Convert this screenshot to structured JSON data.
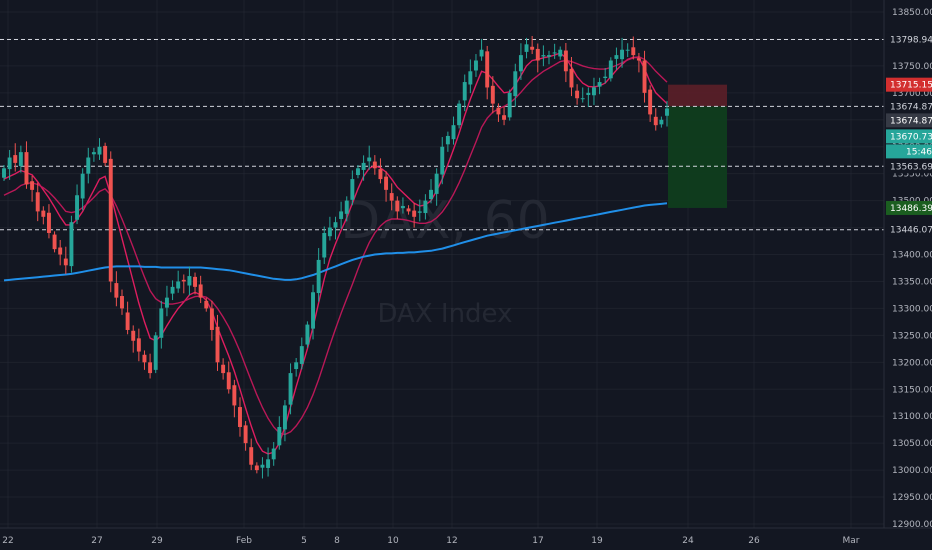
{
  "watermark": {
    "symbol": "DAX, 60",
    "name": "DAX Index"
  },
  "colors": {
    "background": "#131722",
    "grid": "#2a2e39",
    "up": "#26a69a",
    "down": "#ef5350",
    "ma_fast": "#e91e63",
    "ma_slow": "#c2185b",
    "ma_long": "#2196f3",
    "stop_zone": "#5c1f28",
    "target_zone": "#0f3d1e",
    "target_tag": "#1b5e20",
    "stop_tag": "#d32f2f",
    "price_tag": "#26a69a"
  },
  "chart_data": {
    "type": "candlestick",
    "interval": "60",
    "ylim": [
      12900,
      13850
    ],
    "y_ticks": [
      12900,
      12950,
      13000,
      13050,
      13100,
      13150,
      13200,
      13250,
      13300,
      13350,
      13400,
      13450,
      13500,
      13550,
      13600,
      13650,
      13700,
      13750,
      13800,
      13850
    ],
    "y_tick_labels": [
      "12900.000",
      "12950.000",
      "13000.000",
      "13050.000",
      "13100.000",
      "13150.000",
      "13200.000",
      "13250.000",
      "13300.000",
      "13350.000",
      "13400.000",
      "13450.000",
      "13500.000",
      "13550.000",
      "13600.000",
      "13650.000",
      "13700.000",
      "13750.000",
      "13800.000",
      "13850.000"
    ],
    "x_ticks": [
      "22",
      "27",
      "29",
      "Feb",
      "5",
      "8",
      "10",
      "12",
      "17",
      "19",
      "24",
      "26",
      "Mar"
    ],
    "horizontal_lines": [
      {
        "value": 13798.946,
        "label": "13798.946"
      },
      {
        "value": 13674.876,
        "label": "13674.876"
      },
      {
        "value": 13563.695,
        "label": "13563.695"
      },
      {
        "value": 13446.07,
        "label": "13446.070"
      }
    ],
    "price_tags": {
      "stop": "13715.158",
      "entry": "13674.876",
      "last": "13670.730",
      "countdown": "15:46",
      "target": "13486.398"
    },
    "position": {
      "entry": 13674.876,
      "stop": 13715.158,
      "target": 13486.398
    },
    "closes": [
      13560,
      13580,
      13570,
      13590,
      13530,
      13520,
      13480,
      13470,
      13440,
      13410,
      13400,
      13380,
      13460,
      13510,
      13550,
      13580,
      13590,
      13600,
      13570,
      13350,
      13320,
      13300,
      13260,
      13240,
      13220,
      13200,
      13180,
      13250,
      13300,
      13320,
      13340,
      13350,
      13350,
      13360,
      13340,
      13320,
      13300,
      13260,
      13200,
      13180,
      13150,
      13120,
      13080,
      13050,
      13010,
      13000,
      13010,
      13020,
      13040,
      13080,
      13120,
      13180,
      13200,
      13230,
      13270,
      13330,
      13390,
      13440,
      13450,
      13460,
      13480,
      13500,
      13540,
      13560,
      13570,
      13580,
      13560,
      13540,
      13520,
      13500,
      13480,
      13490,
      13480,
      13470,
      13480,
      13500,
      13520,
      13550,
      13600,
      13620,
      13640,
      13680,
      13720,
      13740,
      13760,
      13780,
      13710,
      13680,
      13660,
      13650,
      13700,
      13740,
      13770,
      13790,
      13780,
      13760,
      13770,
      13770,
      13775,
      13780,
      13740,
      13710,
      13690,
      13690,
      13700,
      13710,
      13720,
      13730,
      13760,
      13770,
      13780,
      13780,
      13770,
      13760,
      13700,
      13660,
      13640,
      13650,
      13671
    ],
    "series": [
      {
        "name": "",
        "kind": "ma_fast",
        "values": [
          13540,
          13545,
          13550,
          13556,
          13552,
          13548,
          13535,
          13520,
          13505,
          13488,
          13470,
          13455,
          13455,
          13465,
          13480,
          13500,
          13520,
          13540,
          13545,
          13510,
          13470,
          13430,
          13390,
          13350,
          13310,
          13275,
          13245,
          13240,
          13250,
          13268,
          13285,
          13300,
          13312,
          13325,
          13330,
          13325,
          13315,
          13295,
          13265,
          13238,
          13212,
          13183,
          13150,
          13115,
          13082,
          13052,
          13035,
          13030,
          13033,
          13050,
          13080,
          13118,
          13155,
          13190,
          13225,
          13265,
          13310,
          13355,
          13392,
          13420,
          13445,
          13468,
          13495,
          13522,
          13545,
          13560,
          13565,
          13561,
          13553,
          13540,
          13525,
          13515,
          13505,
          13495,
          13490,
          13492,
          13500,
          13518,
          13540,
          13567,
          13595,
          13625,
          13658,
          13688,
          13715,
          13740,
          13736,
          13725,
          13712,
          13700,
          13702,
          13715,
          13732,
          13750,
          13760,
          13762,
          13765,
          13767,
          13770,
          13774,
          13765,
          13748,
          13730,
          13718,
          13712,
          13711,
          13713,
          13718,
          13730,
          13742,
          13753,
          13762,
          13766,
          13765,
          13745,
          13720,
          13700,
          13690,
          13680
        ]
      },
      {
        "name": "",
        "kind": "ma_slow",
        "values": [
          13510,
          13515,
          13520,
          13528,
          13532,
          13533,
          13530,
          13524,
          13516,
          13505,
          13493,
          13480,
          13478,
          13480,
          13487,
          13496,
          13506,
          13517,
          13522,
          13510,
          13490,
          13466,
          13440,
          13413,
          13385,
          13358,
          13333,
          13318,
          13311,
          13308,
          13308,
          13310,
          13313,
          13318,
          13322,
          13323,
          13321,
          13313,
          13300,
          13284,
          13266,
          13244,
          13220,
          13193,
          13166,
          13140,
          13116,
          13096,
          13080,
          13069,
          13066,
          13071,
          13082,
          13097,
          13116,
          13140,
          13168,
          13200,
          13232,
          13262,
          13291,
          13318,
          13345,
          13373,
          13399,
          13422,
          13440,
          13453,
          13462,
          13466,
          13466,
          13465,
          13463,
          13460,
          13458,
          13458,
          13461,
          13468,
          13479,
          13494,
          13512,
          13533,
          13557,
          13583,
          13609,
          13636,
          13653,
          13664,
          13670,
          13675,
          13681,
          13690,
          13701,
          13713,
          13724,
          13732,
          13740,
          13746,
          13752,
          13758,
          13760,
          13758,
          13754,
          13750,
          13747,
          13745,
          13744,
          13744,
          13747,
          13751,
          13756,
          13761,
          13765,
          13767,
          13762,
          13752,
          13740,
          13730,
          13720
        ]
      },
      {
        "name": "",
        "kind": "ma_long",
        "values": [
          13352,
          13353,
          13354,
          13355,
          13356,
          13357,
          13358,
          13359,
          13360,
          13361,
          13362,
          13363,
          13364,
          13366,
          13368,
          13370,
          13372,
          13374,
          13376,
          13377,
          13378,
          13378,
          13378,
          13378,
          13378,
          13377,
          13377,
          13377,
          13376,
          13376,
          13376,
          13376,
          13376,
          13376,
          13376,
          13376,
          13375,
          13374,
          13373,
          13372,
          13371,
          13369,
          13367,
          13365,
          13363,
          13361,
          13359,
          13357,
          13355,
          13354,
          13353,
          13353,
          13354,
          13356,
          13359,
          13362,
          13366,
          13370,
          13374,
          13378,
          13382,
          13386,
          13390,
          13393,
          13396,
          13398,
          13400,
          13401,
          13402,
          13402,
          13403,
          13403,
          13404,
          13404,
          13405,
          13406,
          13407,
          13409,
          13411,
          13414,
          13417,
          13420,
          13423,
          13426,
          13429,
          13432,
          13435,
          13437,
          13439,
          13441,
          13443,
          13445,
          13447,
          13449,
          13451,
          13453,
          13455,
          13457,
          13459,
          13461,
          13463,
          13465,
          13467,
          13469,
          13471,
          13473,
          13475,
          13477,
          13479,
          13481,
          13483,
          13485,
          13487,
          13489,
          13491,
          13492,
          13493,
          13494,
          13495
        ]
      }
    ]
  }
}
